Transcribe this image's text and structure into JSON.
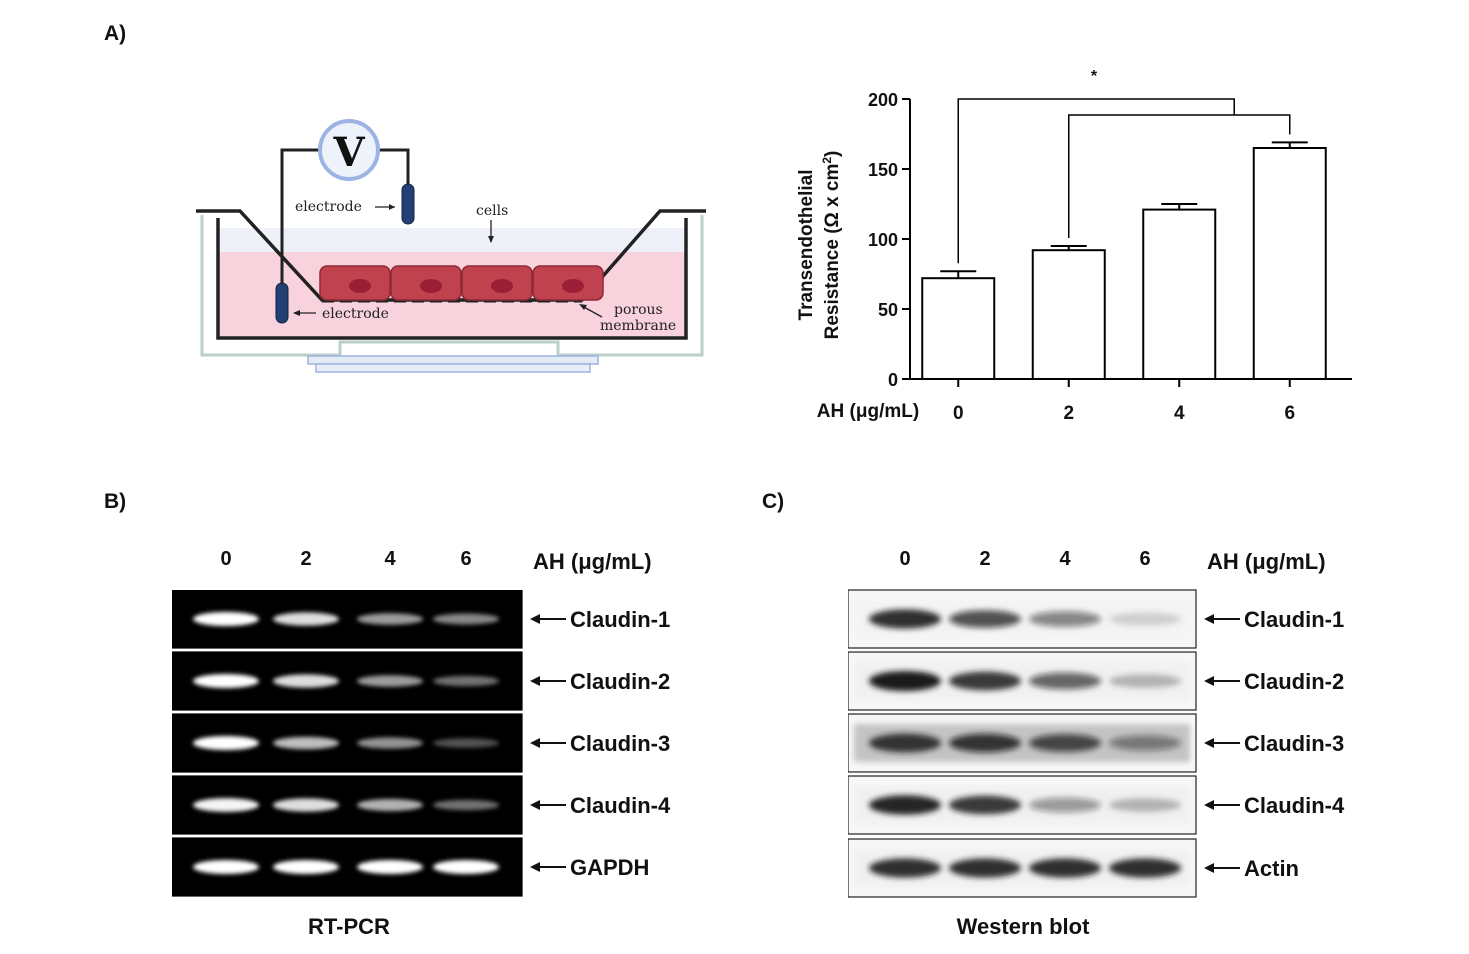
{
  "panel_a": {
    "label": "A)",
    "diagram": {
      "voltmeter": "V",
      "electrode_top": "electrode",
      "electrode_bottom": "electrode",
      "cells": "cells",
      "membrane_line1": "porous",
      "membrane_line2": "membrane"
    }
  },
  "chart_data": {
    "type": "bar",
    "categories": [
      "0",
      "2",
      "4",
      "6"
    ],
    "values": [
      72,
      92,
      121,
      165
    ],
    "errors": [
      5,
      3,
      4,
      4
    ],
    "ylabel_line1": "Transendothelial",
    "ylabel_line2": "Resistance (Ω x cm",
    "ylabel_sup": "2",
    "ylabel_close": ")",
    "xlabel": "AH (μg/mL)",
    "ylim": [
      0,
      200
    ],
    "yticks": [
      0,
      50,
      100,
      150,
      200
    ],
    "significance": "*",
    "bar_fill": "#ffffff",
    "bar_stroke": "#000000"
  },
  "panel_b": {
    "label": "B)",
    "lanes": [
      "0",
      "2",
      "4",
      "6"
    ],
    "unit": "AH (μg/mL)",
    "caption": "RT-PCR",
    "rows": [
      {
        "label": "Claudin-1",
        "intensity": [
          1.0,
          0.85,
          0.55,
          0.45
        ]
      },
      {
        "label": "Claudin-2",
        "intensity": [
          1.0,
          0.85,
          0.55,
          0.35
        ]
      },
      {
        "label": "Claudin-3",
        "intensity": [
          1.0,
          0.7,
          0.5,
          0.2
        ]
      },
      {
        "label": "Claudin-4",
        "intensity": [
          0.95,
          0.85,
          0.65,
          0.35
        ]
      },
      {
        "label": "GAPDH",
        "intensity": [
          1.0,
          1.0,
          1.0,
          1.0
        ]
      }
    ]
  },
  "panel_c": {
    "label": "C)",
    "lanes": [
      "0",
      "2",
      "4",
      "6"
    ],
    "unit": "AH (μg/mL)",
    "caption": "Western blot",
    "rows": [
      {
        "label": "Claudin-1",
        "intensity": [
          0.9,
          0.7,
          0.45,
          0.08
        ]
      },
      {
        "label": "Claudin-2",
        "intensity": [
          1.0,
          0.85,
          0.6,
          0.2
        ]
      },
      {
        "label": "Claudin-3",
        "intensity": [
          0.85,
          0.8,
          0.7,
          0.4
        ]
      },
      {
        "label": "Claudin-4",
        "intensity": [
          0.95,
          0.85,
          0.35,
          0.2
        ]
      },
      {
        "label": "Actin",
        "intensity": [
          0.9,
          0.9,
          0.9,
          0.9
        ]
      }
    ]
  }
}
